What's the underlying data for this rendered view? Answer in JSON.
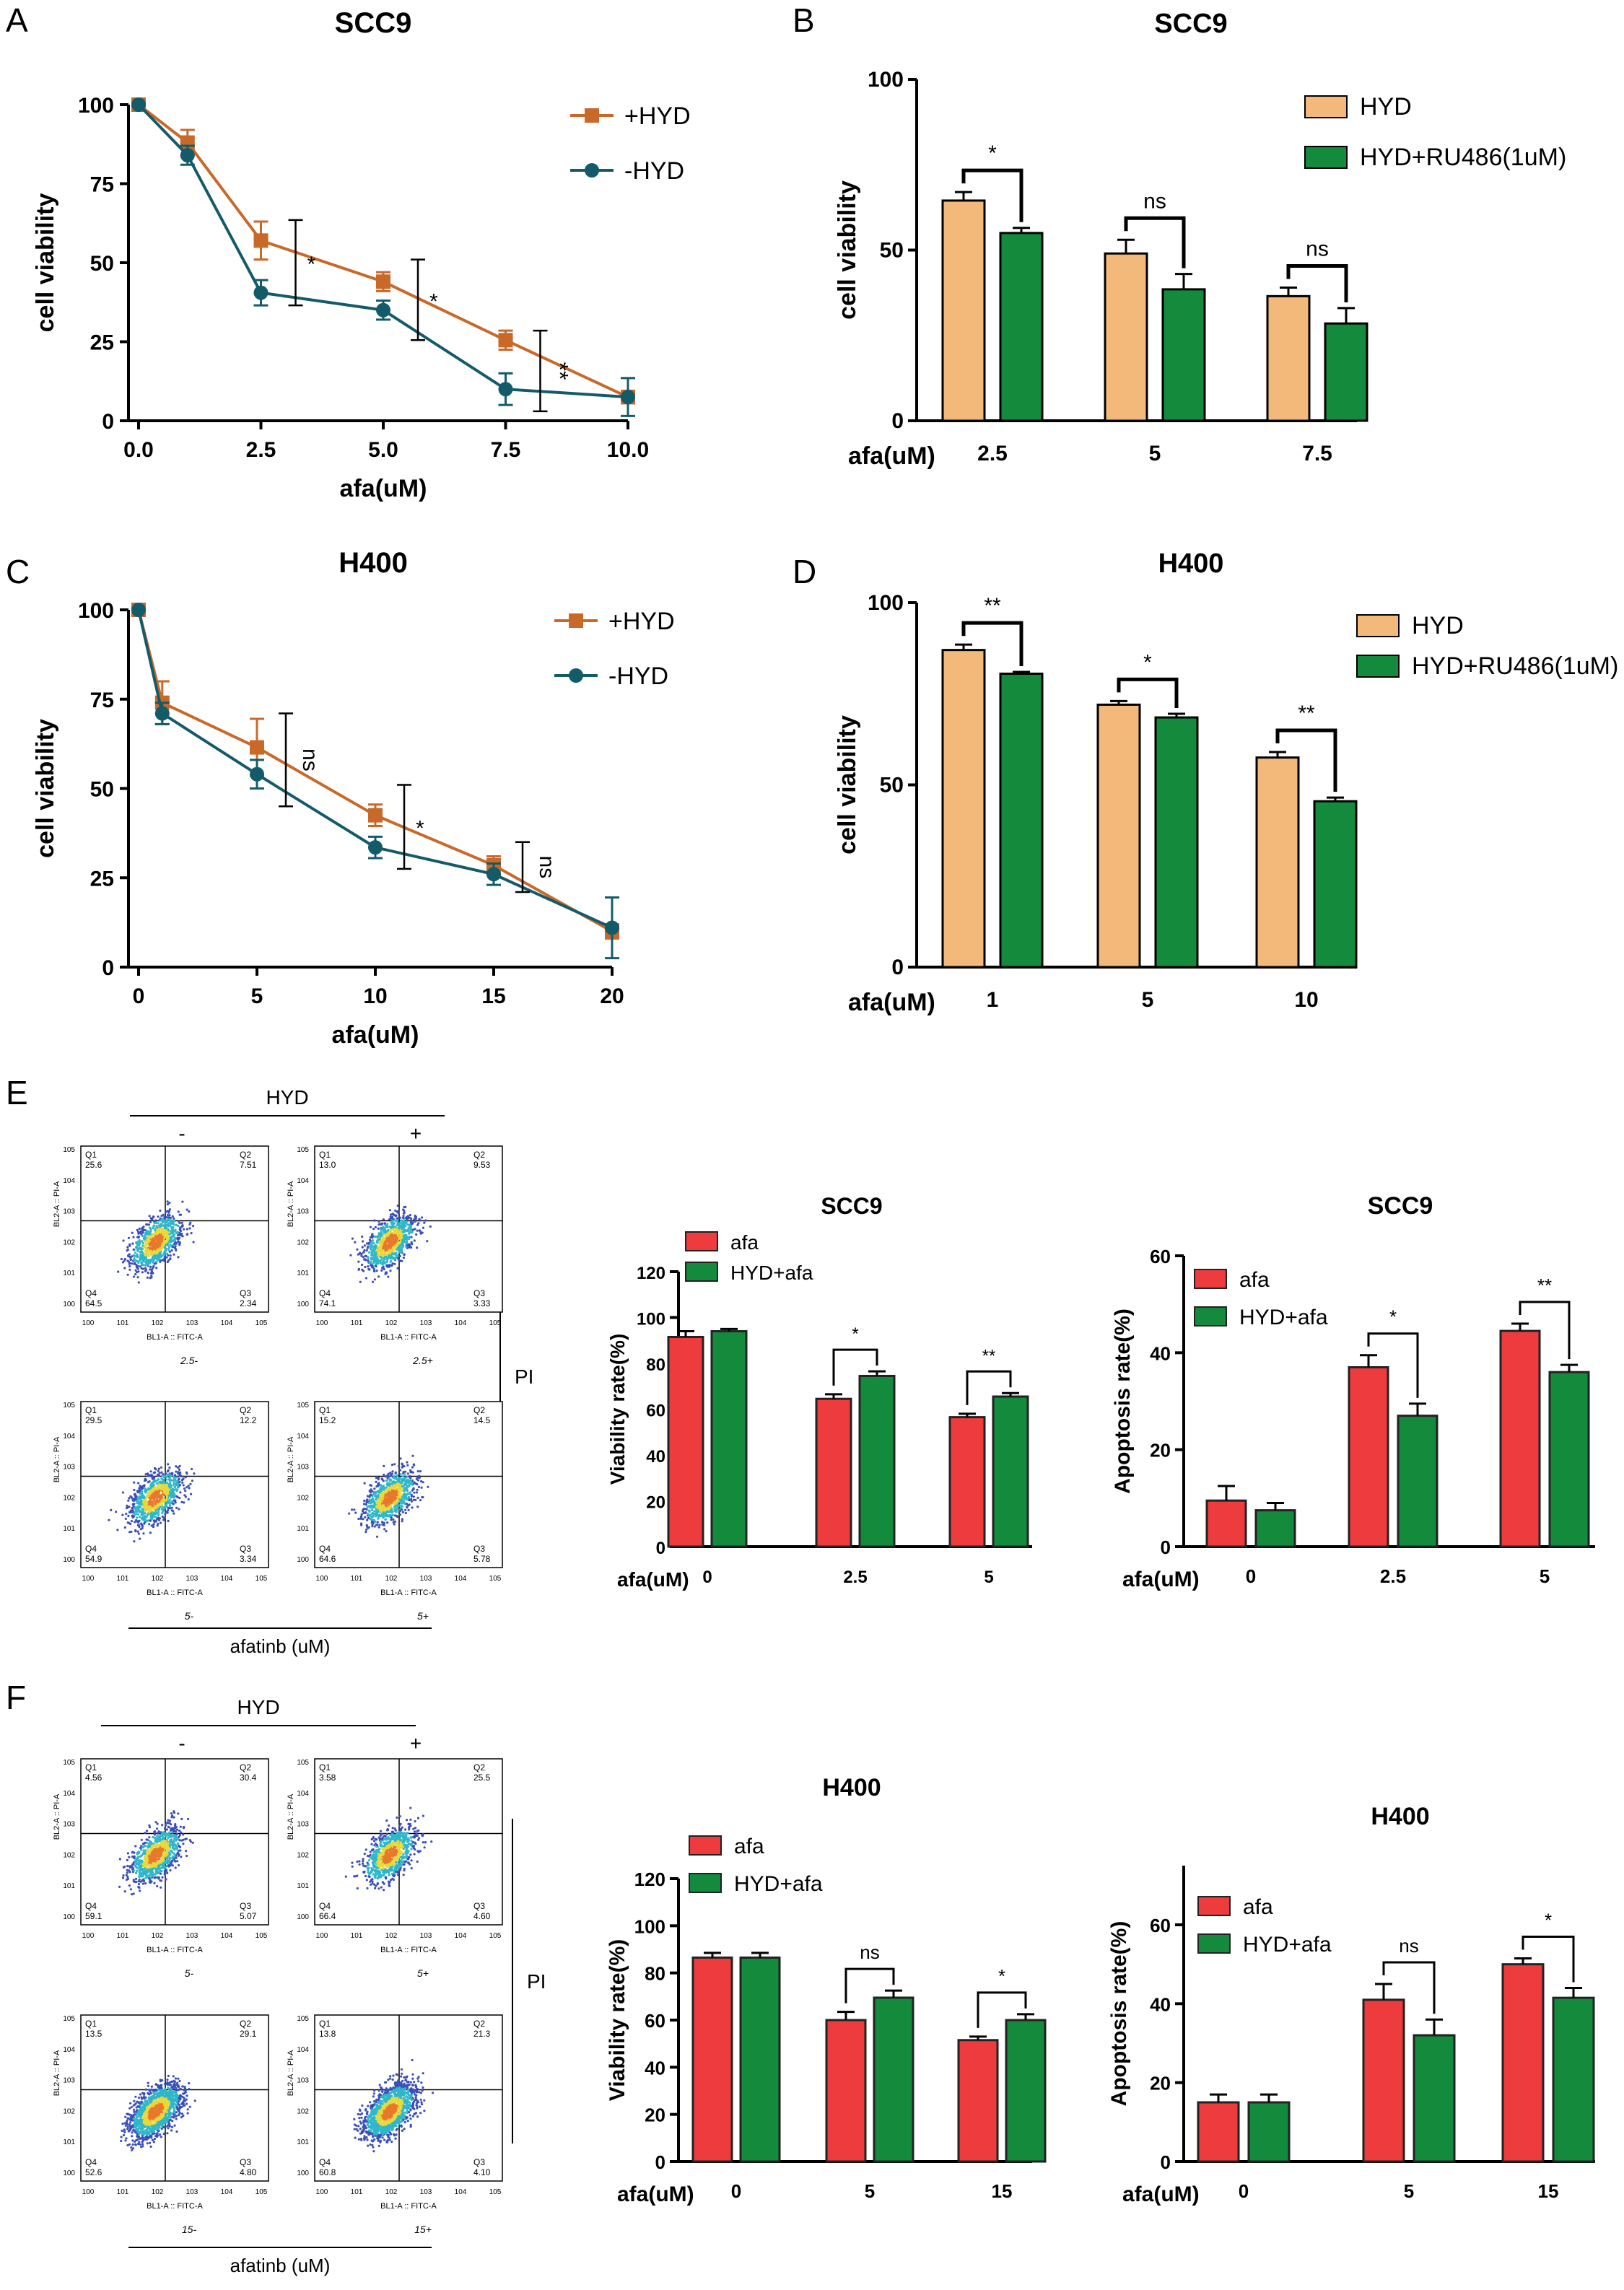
{
  "panel_letters": {
    "A": "A",
    "B": "B",
    "C": "C",
    "D": "D",
    "E": "E",
    "F": "F"
  },
  "colors": {
    "orange_line": "#c8692a",
    "teal_line": "#145b6a",
    "tan_bar": "#f2b97a",
    "green_bar": "#138a3c",
    "red_bar": "#ee3b3e",
    "dot_blue": "#3b4fb6",
    "dot_cyan": "#2fb7c9",
    "dot_yellow": "#e8d83c",
    "dot_orange": "#e8782c"
  },
  "flow_E": {
    "hyd_label": "HYD",
    "minus": "-",
    "plus": "+",
    "pi_label": "PI",
    "bottom_label": "afatinb (uM)",
    "row_labels": [
      "2.5-",
      "2.5+",
      "5-",
      "5+"
    ],
    "xaxis": "BL1-A :: FITC-A",
    "yaxis": "BL2-A :: PI-A",
    "plots": [
      {
        "q1": "25.6",
        "q2": "7.51",
        "q3": "2.34",
        "q4": "64.5"
      },
      {
        "q1": "13.0",
        "q2": "9.53",
        "q3": "3.33",
        "q4": "74.1"
      },
      {
        "q1": "29.5",
        "q2": "12.2",
        "q3": "3.34",
        "q4": "54.9"
      },
      {
        "q1": "15.2",
        "q2": "14.5",
        "q3": "5.78",
        "q4": "64.6"
      }
    ]
  },
  "flow_F": {
    "hyd_label": "HYD",
    "minus": "-",
    "plus": "+",
    "pi_label": "PI",
    "bottom_label": "afatinb (uM)",
    "row_labels": [
      "5-",
      "5+",
      "15-",
      "15+"
    ],
    "xaxis": "BL1-A :: FITC-A",
    "yaxis": "BL2-A :: PI-A",
    "plots": [
      {
        "q1": "4.56",
        "q2": "30.4",
        "q3": "5.07",
        "q4": "59.1"
      },
      {
        "q1": "3.58",
        "q2": "25.5",
        "q3": "4.60",
        "q4": "66.4"
      },
      {
        "q1": "13.5",
        "q2": "29.1",
        "q3": "4.80",
        "q4": "52.6"
      },
      {
        "q1": "13.8",
        "q2": "21.3",
        "q3": "4.10",
        "q4": "60.8"
      }
    ]
  },
  "chart_data": [
    {
      "id": "A",
      "type": "line",
      "title": "SCC9",
      "xlabel": "afa(uM)",
      "ylabel": "cell viability",
      "xlim": [
        0,
        10
      ],
      "ylim": [
        0,
        100
      ],
      "xticks": [
        "0.0",
        "2.5",
        "5.0",
        "7.5",
        "10.0"
      ],
      "yticks": [
        "0",
        "25",
        "50",
        "75",
        "100"
      ],
      "series": [
        {
          "name": "+HYD",
          "x": [
            0,
            1,
            2.5,
            5,
            7.5,
            10
          ],
          "y": [
            100,
            88,
            57,
            44,
            25.5,
            7.5
          ],
          "err": [
            0,
            4,
            6,
            3,
            3,
            2
          ]
        },
        {
          "name": "-HYD",
          "x": [
            0,
            1,
            2.5,
            5,
            7.5,
            10
          ],
          "y": [
            100,
            84,
            40.5,
            35,
            10,
            7.5
          ],
          "err": [
            0,
            3,
            4,
            3,
            5,
            6
          ]
        }
      ],
      "annotations": [
        {
          "label": "*",
          "x": 2.5,
          "ylow": 36.5,
          "yhigh": 63.5
        },
        {
          "label": "*",
          "x": 5,
          "ylow": 25.5,
          "yhigh": 51
        },
        {
          "label": "**",
          "x": 7.5,
          "ylow": 3,
          "yhigh": 28.5
        }
      ]
    },
    {
      "id": "B",
      "type": "bar",
      "title": "SCC9",
      "xlabel": "afa(uM)",
      "ylabel": "cell viability",
      "ylim": [
        0,
        100
      ],
      "yticks": [
        "0",
        "50",
        "100"
      ],
      "categories": [
        "2.5",
        "5",
        "7.5"
      ],
      "series": [
        {
          "name": "HYD",
          "values": [
            64.5,
            49,
            36.5
          ],
          "err": [
            2.5,
            4,
            2.5
          ]
        },
        {
          "name": "HYD+RU486(1uM)",
          "values": [
            55,
            38.5,
            28.5
          ],
          "err": [
            1.5,
            4.5,
            4.5
          ]
        }
      ],
      "sig": [
        "*",
        "ns",
        "ns"
      ]
    },
    {
      "id": "C",
      "type": "line",
      "title": "H400",
      "xlabel": "afa(uM)",
      "ylabel": "cell viability",
      "xlim": [
        0,
        20
      ],
      "ylim": [
        0,
        100
      ],
      "xticks": [
        "0",
        "5",
        "10",
        "15",
        "20"
      ],
      "yticks": [
        "0",
        "25",
        "50",
        "75",
        "100"
      ],
      "series": [
        {
          "name": "+HYD",
          "x": [
            0,
            1,
            5,
            10,
            15,
            20
          ],
          "y": [
            100,
            74,
            61.5,
            42.5,
            28.5,
            10
          ],
          "err": [
            0,
            6,
            8,
            3,
            2.5,
            2
          ]
        },
        {
          "name": "-HYD",
          "x": [
            0,
            1,
            5,
            10,
            15,
            20
          ],
          "y": [
            100,
            71,
            54,
            33.5,
            26,
            11
          ],
          "err": [
            0,
            3,
            4,
            3,
            3,
            8.5
          ]
        }
      ],
      "annotations": [
        {
          "label": "ns",
          "x": 5,
          "ylow": 45,
          "yhigh": 71
        },
        {
          "label": "*",
          "x": 10,
          "ylow": 27.5,
          "yhigh": 51
        },
        {
          "label": "ns",
          "x": 15,
          "ylow": 21,
          "yhigh": 35
        }
      ]
    },
    {
      "id": "D",
      "type": "bar",
      "title": "H400",
      "xlabel": "afa(uM)",
      "ylabel": "cell viability",
      "ylim": [
        0,
        100
      ],
      "yticks": [
        "0",
        "50",
        "100"
      ],
      "categories": [
        "1",
        "5",
        "10"
      ],
      "series": [
        {
          "name": "HYD",
          "values": [
            87,
            72,
            57.5
          ],
          "err": [
            1.5,
            1,
            1.5
          ]
        },
        {
          "name": "HYD+RU486(1uM)",
          "values": [
            80.5,
            68.5,
            45.5
          ],
          "err": [
            0.5,
            1,
            1
          ]
        }
      ],
      "sig": [
        "**",
        "*",
        "**"
      ]
    },
    {
      "id": "E1",
      "type": "bar",
      "title": "SCC9",
      "xlabel": "afa(uM)",
      "ylabel": "Viability rate(%)",
      "ylim": [
        0,
        120
      ],
      "yticks": [
        "0",
        "20",
        "40",
        "60",
        "80",
        "100",
        "120"
      ],
      "categories": [
        "0",
        "2.5",
        "5"
      ],
      "series": [
        {
          "name": "afa",
          "values": [
            91.5,
            64.5,
            56.5
          ],
          "err": [
            2.5,
            2,
            1.5
          ]
        },
        {
          "name": "HYD+afa",
          "values": [
            94,
            74.5,
            65.5
          ],
          "err": [
            1,
            2,
            1.5
          ]
        }
      ],
      "sig": [
        "",
        "*",
        "**"
      ]
    },
    {
      "id": "E2",
      "type": "bar",
      "title": "SCC9",
      "xlabel": "afa(uM)",
      "ylabel": "Apoptosis rate(%)",
      "ylim": [
        0,
        60
      ],
      "yticks": [
        "0",
        "20",
        "40",
        "60"
      ],
      "categories": [
        "0",
        "2.5",
        "5"
      ],
      "series": [
        {
          "name": "afa",
          "values": [
            9.5,
            37,
            44.5
          ],
          "err": [
            3,
            2.5,
            1.5
          ]
        },
        {
          "name": "HYD+afa",
          "values": [
            7.5,
            27,
            36
          ],
          "err": [
            1.5,
            2.5,
            1.5
          ]
        }
      ],
      "sig": [
        "",
        "*",
        "**"
      ]
    },
    {
      "id": "F1",
      "type": "bar",
      "title": "H400",
      "xlabel": "afa(uM)",
      "ylabel": "Viability rate(%)",
      "ylim": [
        0,
        120
      ],
      "yticks": [
        "0",
        "20",
        "40",
        "60",
        "80",
        "100",
        "120"
      ],
      "categories": [
        "0",
        "5",
        "15"
      ],
      "series": [
        {
          "name": "afa",
          "values": [
            86.5,
            60,
            51.5
          ],
          "err": [
            2,
            3.5,
            1.5
          ]
        },
        {
          "name": "HYD+afa",
          "values": [
            86.5,
            69.5,
            60
          ],
          "err": [
            2,
            3,
            2.5
          ]
        }
      ],
      "sig": [
        "",
        "ns",
        "*"
      ]
    },
    {
      "id": "F2",
      "type": "bar",
      "title": "H400",
      "xlabel": "afa(uM)",
      "ylabel": "Apoptosis rate(%)",
      "ylim": [
        0,
        75
      ],
      "yticks": [
        "0",
        "20",
        "40",
        "60"
      ],
      "categories": [
        "0",
        "5",
        "15"
      ],
      "series": [
        {
          "name": "afa",
          "values": [
            15,
            41,
            50
          ],
          "err": [
            2,
            4,
            1.5
          ]
        },
        {
          "name": "HYD+afa",
          "values": [
            15,
            32,
            41.5
          ],
          "err": [
            2,
            4,
            2.5
          ]
        }
      ],
      "sig": [
        "",
        "ns",
        "*"
      ]
    }
  ]
}
